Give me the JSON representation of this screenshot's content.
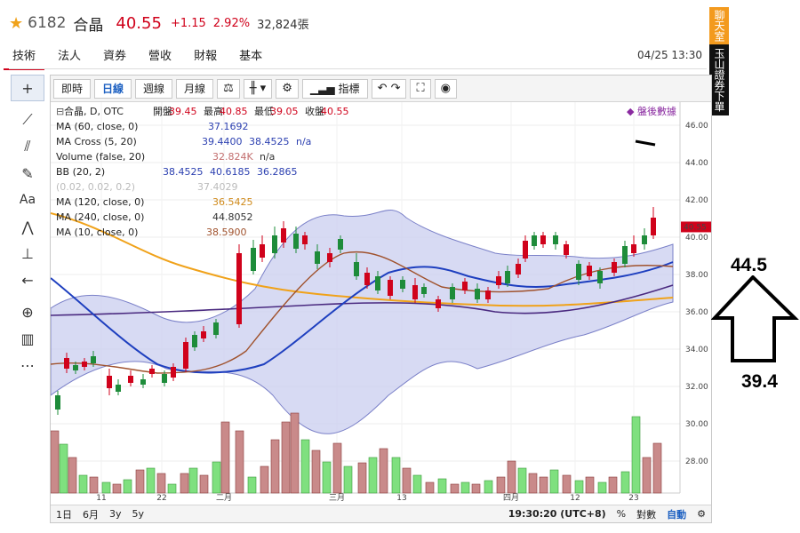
{
  "header": {
    "code": "6182",
    "name": "合晶",
    "price": "40.55",
    "change": "+1.15",
    "percent": "2.92%",
    "volume": "32,824張"
  },
  "tabs": [
    {
      "label": "技術"
    },
    {
      "label": "法人"
    },
    {
      "label": "資券"
    },
    {
      "label": "營收"
    },
    {
      "label": "財報"
    },
    {
      "label": "基本"
    }
  ],
  "datetime": "04/25 13:30",
  "banner": {
    "top": "聊天室",
    "bottom": "玉山證券下單"
  },
  "toolbar": {
    "intraday": "即時",
    "daily": "日線",
    "weekly": "週線",
    "monthly": "月線",
    "indicators": "指標"
  },
  "legend": {
    "main": {
      "label": "合晶, D, OTC",
      "open_l": "開盤",
      "open": "39.45",
      "high_l": "最高",
      "high": "40.85",
      "low_l": "最低",
      "low": "39.05",
      "close_l": "收盤",
      "close": "40.55"
    },
    "after_hours": "盤後數據",
    "ma60": {
      "label": "MA (60, close, 0)",
      "v": "37.1692"
    },
    "macross": {
      "label": "MA Cross (5, 20)",
      "v1": "39.4400",
      "v2": "38.4525",
      "v3": "n/a"
    },
    "volume": {
      "label": "Volume (false, 20)",
      "v1": "32.824K",
      "v2": "n/a"
    },
    "bb": {
      "label": "BB (20, 2)",
      "v1": "38.4525",
      "v2": "40.6185",
      "v3": "36.2865"
    },
    "hidden": {
      "label": "(0.02, 0.02, 0.2)",
      "v": "37.4029"
    },
    "ma120": {
      "label": "MA (120, close, 0)",
      "v": "36.5425"
    },
    "ma240": {
      "label": "MA (240, close, 0)",
      "v": "44.8052"
    },
    "ma10": {
      "label": "MA (10, close, 0)",
      "v": "38.5900"
    }
  },
  "yaxis": {
    "ticks": [
      "46.00",
      "44.00",
      "42.00",
      "40.00",
      "38.00",
      "36.00",
      "34.00",
      "32.00",
      "30.00",
      "28.00"
    ],
    "last": "40.55"
  },
  "xaxis": {
    "labels": [
      "11",
      "22",
      "二月",
      "三月",
      "13",
      "四月",
      "12",
      "23"
    ]
  },
  "bottom": {
    "ranges": [
      "1日",
      "6月",
      "3y",
      "5y"
    ],
    "time": "19:30:20 (UTC+8)",
    "pct": "%",
    "log": "對數",
    "auto": "自動"
  },
  "annotation": {
    "top": "44.5",
    "bottom": "39.4"
  },
  "colors": {
    "up": "#d0021b",
    "down": "#1e8c3a",
    "bb_fill": "#c9cdef",
    "ma_orange": "#f0a21a",
    "ma_blue": "#1e3fbf"
  }
}
